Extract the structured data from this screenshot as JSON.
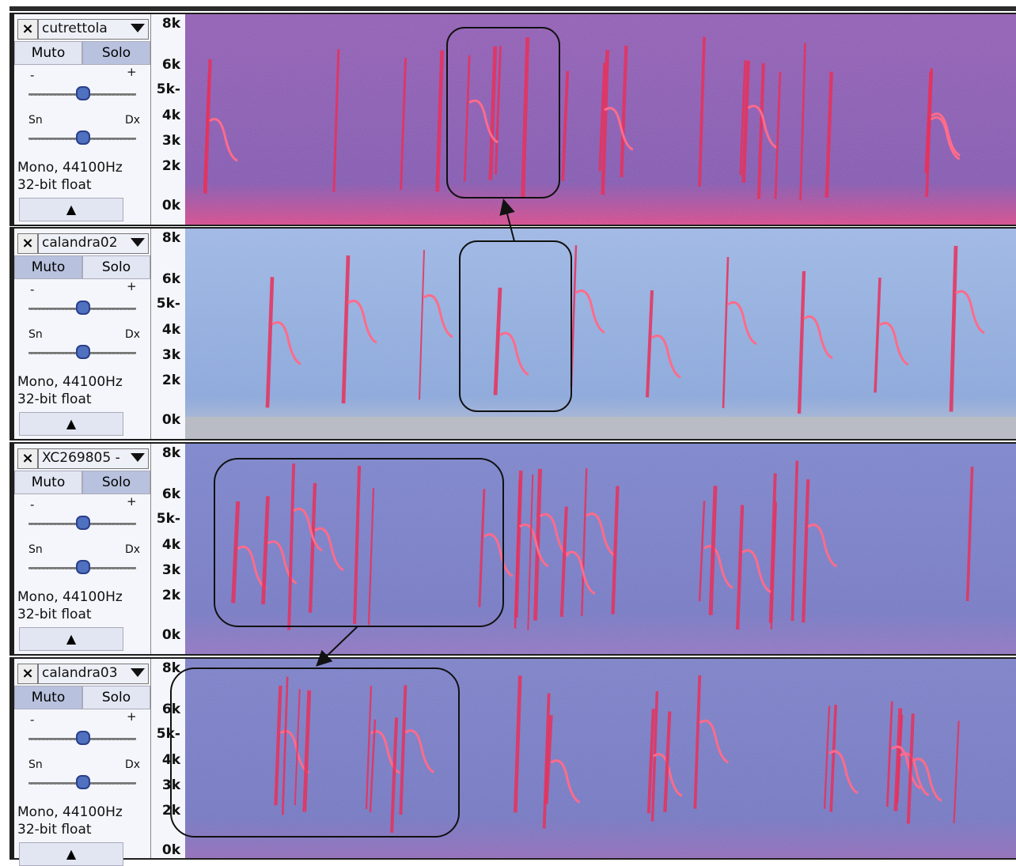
{
  "tracks": [
    {
      "name": "cutrettola",
      "mute": "Muto",
      "solo": "Solo",
      "gain_min": "-",
      "gain_max": "+",
      "pan_left": "Sn",
      "pan_right": "Dx",
      "format": "Mono, 44100Hz",
      "depth": "32-bit float",
      "freq_labels": [
        "8k",
        "6k",
        "5k-",
        "4k",
        "3k",
        "2k",
        "0k"
      ]
    },
    {
      "name": "calandra02",
      "mute": "Muto",
      "solo": "Solo",
      "gain_min": "-",
      "gain_max": "+",
      "pan_left": "Sn",
      "pan_right": "Dx",
      "format": "Mono, 44100Hz",
      "depth": "32-bit float",
      "freq_labels": [
        "8k",
        "6k",
        "5k-",
        "4k",
        "3k",
        "2k",
        "0k"
      ]
    },
    {
      "name": "XC269805 -",
      "mute": "Muto",
      "solo": "Solo",
      "gain_min": "-",
      "gain_max": "+",
      "pan_left": "Sn",
      "pan_right": "Dx",
      "format": "Mono, 44100Hz",
      "depth": "32-bit float",
      "freq_labels": [
        "8k",
        "6k",
        "5k-",
        "4k",
        "3k",
        "2k",
        "0k"
      ]
    },
    {
      "name": "calandra03",
      "mute": "Muto",
      "solo": "Solo",
      "gain_min": "-",
      "gain_max": "+",
      "pan_left": "Sn",
      "pan_right": "Dx",
      "format": "Mono, 44100Hz",
      "depth": "32-bit float",
      "freq_labels": [
        "8k",
        "6k",
        "5k-",
        "4k",
        "3k",
        "2k",
        "0k"
      ]
    }
  ]
}
